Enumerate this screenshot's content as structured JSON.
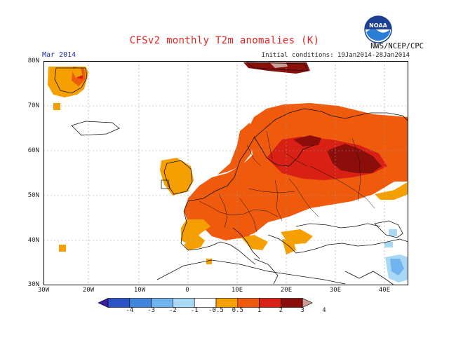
{
  "header": {
    "title": "CFSv2 monthly T2m anomalies (K)",
    "month": "Mar 2014",
    "initial_conditions": "Initial conditions: 19Jan2014-28Jan2014",
    "agency": "NWS/NCEP/CPC",
    "logo_text": "NOAA"
  },
  "axes": {
    "lat_labels": [
      "80N",
      "70N",
      "60N",
      "50N",
      "40N",
      "30N"
    ],
    "lon_labels": [
      "30W",
      "20W",
      "10W",
      "0",
      "10E",
      "20E",
      "30E",
      "40E"
    ]
  },
  "colorbar": {
    "labels": [
      "-4",
      "-3",
      "-2",
      "-1",
      "-0.5",
      "0.5",
      "1",
      "2",
      "3",
      "4"
    ],
    "colors": [
      "#3b1fa3",
      "#2c52c8",
      "#3f86dc",
      "#6fb4ec",
      "#a9d8f5",
      "#ffffff",
      "#f5a000",
      "#ef5a0c",
      "#d92015",
      "#8c0e0b",
      "#c89e95"
    ]
  },
  "map_colors": {
    "c05": "#f5a000",
    "c1": "#ef5a0c",
    "c2": "#d92015",
    "c3": "#8c0e0b",
    "c4": "#c89e95",
    "n05": "#a9d8f5",
    "n1": "#6fb4ec"
  }
}
